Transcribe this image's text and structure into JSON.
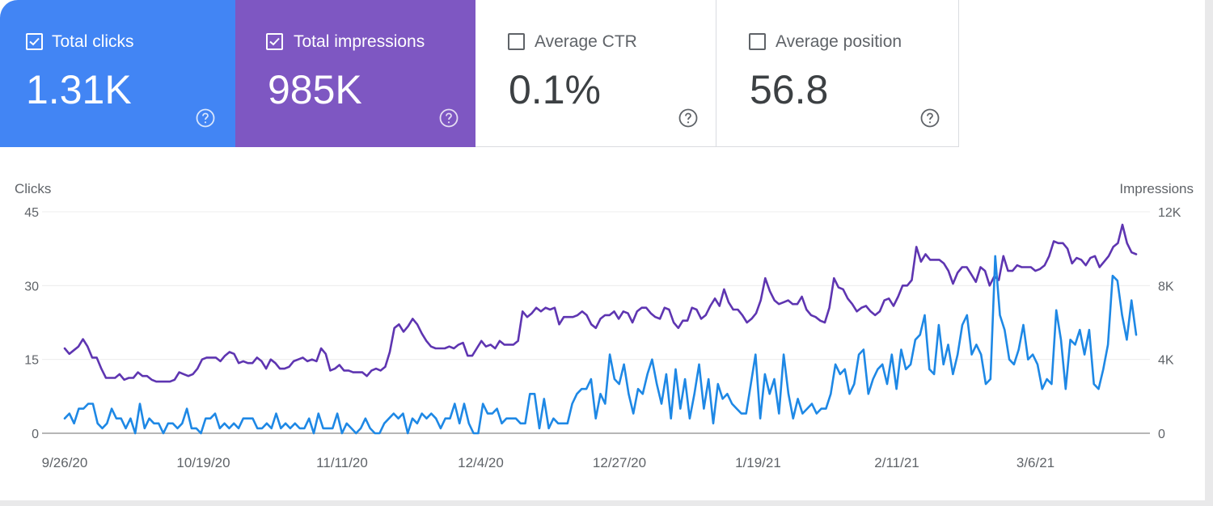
{
  "metrics": [
    {
      "label": "Total clicks",
      "value": "1.31K",
      "checked": true,
      "color": "#4285f4"
    },
    {
      "label": "Total impressions",
      "value": "985K",
      "checked": true,
      "color": "#7e57c2"
    },
    {
      "label": "Average CTR",
      "value": "0.1%",
      "checked": false,
      "color": "#ffffff"
    },
    {
      "label": "Average position",
      "value": "56.8",
      "checked": false,
      "color": "#ffffff"
    }
  ],
  "chart_data": {
    "type": "line",
    "ylabel_left": "Clicks",
    "ylabel_right": "Impressions",
    "left_axis": {
      "ticks": [
        "0",
        "15",
        "30",
        "45"
      ],
      "ylim": [
        0,
        45
      ]
    },
    "right_axis": {
      "ticks": [
        "0",
        "4K",
        "8K",
        "12K"
      ],
      "ylim": [
        0,
        12000
      ]
    },
    "x_tick_labels": [
      "9/26/20",
      "10/19/20",
      "11/11/20",
      "12/4/20",
      "12/27/20",
      "1/19/21",
      "2/11/21",
      "3/6/21"
    ],
    "x_range_days": [
      0,
      180
    ],
    "grid": true,
    "legend": "none",
    "series": [
      {
        "name": "Total impressions",
        "axis": "right",
        "color": "#5e35b1",
        "values": [
          4600,
          4300,
          4500,
          4700,
          5100,
          4700,
          4100,
          4100,
          3500,
          3000,
          3000,
          3000,
          3200,
          2900,
          3000,
          3000,
          3300,
          3100,
          3100,
          2900,
          2800,
          2800,
          2800,
          2800,
          2900,
          3300,
          3200,
          3100,
          3200,
          3500,
          4000,
          4100,
          4100,
          4100,
          3900,
          4200,
          4400,
          4300,
          3800,
          3900,
          3800,
          3800,
          4100,
          3900,
          3500,
          4000,
          3800,
          3500,
          3500,
          3600,
          3900,
          4000,
          4100,
          3900,
          4000,
          3900,
          4600,
          4300,
          3400,
          3500,
          3700,
          3400,
          3400,
          3300,
          3300,
          3300,
          3100,
          3400,
          3500,
          3400,
          3600,
          4400,
          5700,
          5900,
          5500,
          5800,
          6200,
          5900,
          5400,
          5000,
          4700,
          4600,
          4600,
          4600,
          4700,
          4600,
          4800,
          4900,
          4200,
          4200,
          4600,
          5000,
          4700,
          4800,
          4600,
          5000,
          4800,
          4800,
          4800,
          5000,
          6600,
          6300,
          6500,
          6800,
          6600,
          6800,
          6700,
          6800,
          5900,
          6300,
          6300,
          6300,
          6400,
          6600,
          6400,
          5900,
          5700,
          6200,
          6400,
          6400,
          6600,
          6200,
          6600,
          6500,
          6000,
          6600,
          6800,
          6800,
          6500,
          6300,
          6200,
          6800,
          6700,
          6000,
          5700,
          6100,
          6100,
          6800,
          6700,
          6200,
          6400,
          6900,
          7300,
          6900,
          7800,
          7100,
          6700,
          6700,
          6400,
          6000,
          6200,
          6500,
          7200,
          8400,
          7700,
          7200,
          7000,
          7100,
          7200,
          7000,
          7000,
          7400,
          6700,
          6400,
          6300,
          6100,
          6000,
          6800,
          8400,
          7900,
          7800,
          7300,
          7000,
          6600,
          6800,
          6900,
          6600,
          6400,
          6600,
          7200,
          7300,
          6900,
          7400,
          8000,
          8000,
          8300,
          10100,
          9300,
          9700,
          9400,
          9400,
          9400,
          9200,
          8800,
          8100,
          8700,
          9000,
          9000,
          8600,
          8200,
          9000,
          8800,
          8000,
          8500,
          8300,
          9600,
          8800,
          8800,
          9100,
          9000,
          9000,
          9000,
          8800,
          8900,
          9100,
          9600,
          10400,
          10300,
          10300,
          10000,
          9200,
          9500,
          9400,
          9100,
          9500,
          9600,
          9000,
          9300,
          9600,
          10100,
          10300,
          11300,
          10300,
          9800,
          9700
        ]
      },
      {
        "name": "Total clicks",
        "axis": "left",
        "color": "#1e88e5",
        "values": [
          3,
          4,
          2,
          5,
          5,
          6,
          6,
          2,
          1,
          2,
          5,
          3,
          3,
          1,
          3,
          0,
          6,
          1,
          3,
          2,
          2,
          0,
          2,
          2,
          1,
          2,
          5,
          1,
          1,
          0,
          3,
          3,
          4,
          1,
          2,
          1,
          2,
          1,
          3,
          3,
          3,
          1,
          1,
          2,
          1,
          4,
          1,
          2,
          1,
          2,
          1,
          1,
          3,
          0,
          4,
          1,
          1,
          1,
          4,
          0,
          2,
          1,
          0,
          1,
          3,
          1,
          0,
          0,
          2,
          3,
          4,
          3,
          4,
          0,
          3,
          2,
          4,
          3,
          4,
          3,
          1,
          3,
          3,
          6,
          2,
          6,
          2,
          0,
          0,
          6,
          4,
          4,
          5,
          2,
          3,
          3,
          3,
          2,
          2,
          8,
          8,
          1,
          7,
          1,
          3,
          2,
          2,
          2,
          6,
          8,
          9,
          9,
          11,
          3,
          8,
          6,
          16,
          11,
          10,
          14,
          8,
          4,
          9,
          8,
          12,
          15,
          10,
          6,
          12,
          3,
          13,
          5,
          11,
          3,
          8,
          14,
          5,
          11,
          2,
          10,
          7,
          8,
          6,
          5,
          4,
          4,
          10,
          16,
          3,
          12,
          8,
          11,
          4,
          16,
          8,
          3,
          7,
          4,
          5,
          6,
          4,
          5,
          5,
          8,
          14,
          12,
          13,
          8,
          10,
          16,
          17,
          8,
          11,
          13,
          14,
          10,
          16,
          9,
          17,
          13,
          14,
          19,
          20,
          24,
          13,
          12,
          22,
          14,
          18,
          12,
          16,
          22,
          24,
          16,
          18,
          16,
          10,
          11,
          36,
          24,
          21,
          15,
          14,
          17,
          22,
          15,
          16,
          14,
          9,
          11,
          10,
          25,
          19,
          9,
          19,
          18,
          21,
          16,
          21,
          10,
          9,
          13,
          18,
          32,
          31,
          24,
          19,
          27,
          20
        ]
      }
    ]
  }
}
